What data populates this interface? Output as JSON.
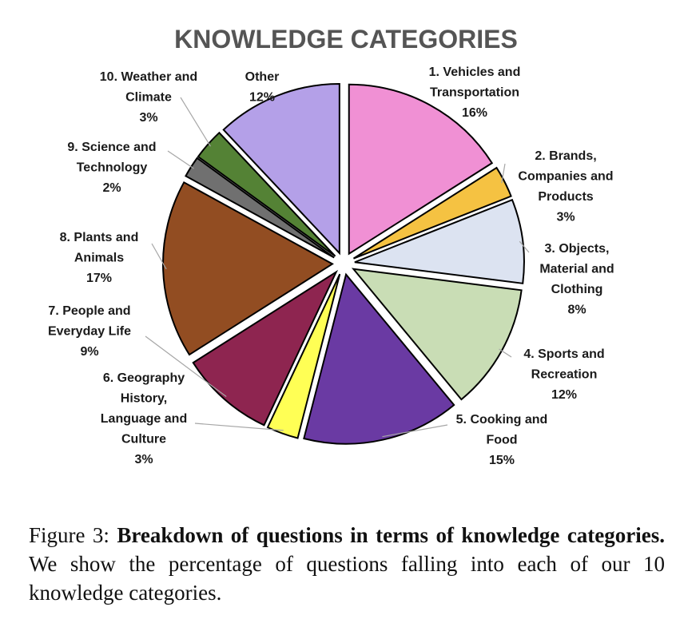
{
  "chart_data": {
    "type": "pie",
    "title": "KNOWLEDGE CATEGORIES",
    "categories": [
      "1. Vehicles and Transportation",
      "2. Brands, Companies and Products",
      "3. Objects, Material and Clothing",
      "4. Sports and Recreation",
      "5. Cooking and Food",
      "6. Geography History, Language and Culture",
      "7. People and Everyday Life",
      "8. Plants and Animals",
      "9. Science and Technology",
      "10. Weather and Climate",
      "Other"
    ],
    "values": [
      16,
      3,
      8,
      12,
      15,
      3,
      9,
      17,
      2,
      3,
      12
    ],
    "colors": [
      "#f090d4",
      "#f5c242",
      "#dce3f1",
      "#c9ddb5",
      "#6a3aa3",
      "#ffff55",
      "#8e2550",
      "#924d22",
      "#707070",
      "#548235",
      "#b4a0e8"
    ],
    "labels": [
      [
        "1. Vehicles and",
        "Transportation",
        "16%"
      ],
      [
        "2. Brands,",
        "Companies and",
        "Products",
        "3%"
      ],
      [
        "3. Objects,",
        "Material and",
        "Clothing",
        "8%"
      ],
      [
        "4. Sports and",
        "Recreation",
        "12%"
      ],
      [
        "5. Cooking and",
        "Food",
        "15%"
      ],
      [
        "6. Geography",
        "History,",
        "Language and",
        "Culture",
        "3%"
      ],
      [
        "7. People and",
        "Everyday Life",
        "9%"
      ],
      [
        "8. Plants and",
        "Animals",
        "17%"
      ],
      [
        "9. Science and",
        "Technology",
        "2%"
      ],
      [
        "10. Weather and",
        "Climate",
        "3%"
      ],
      [
        "Other",
        "12%"
      ]
    ]
  },
  "caption": {
    "prefix": "Figure 3: ",
    "bold": "Breakdown of questions in terms of knowledge categories.",
    "rest": "  We show the percentage of questions falling into each of our 10 knowledge categories."
  }
}
